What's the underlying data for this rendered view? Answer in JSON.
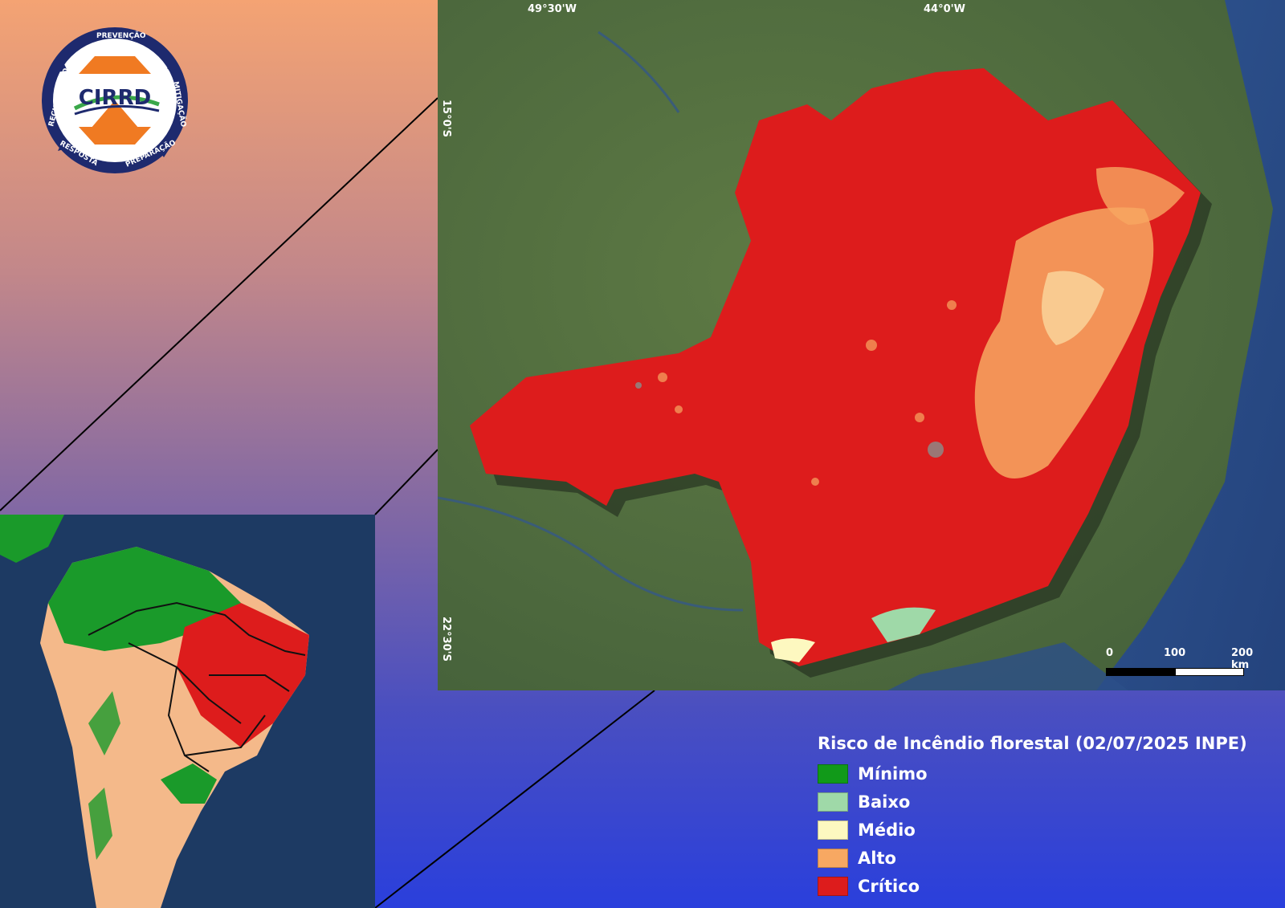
{
  "logo": {
    "name": "CIRRD",
    "ring_words": [
      "PREVENÇÃO",
      "MITIGAÇÃO",
      "PREPARAÇÃO",
      "RESPOSTA",
      "RECUPERAÇÃO"
    ],
    "colors": {
      "ring": "#1e2a6e",
      "mark": "#f07a22",
      "swoosh_green": "#3aa84a"
    }
  },
  "main_map": {
    "coordinate_labels": {
      "top_left": "49°30'W",
      "top_right": "44°0'W",
      "left_upper": "15°0'S",
      "left_lower": "22°30'S"
    }
  },
  "scale_bar": {
    "labels": [
      "0",
      "100",
      "200 km"
    ]
  },
  "legend": {
    "title": "Risco de Incêndio florestal (02/07/2025 INPE)",
    "items": [
      {
        "label": "Mínimo",
        "color": "#119a19"
      },
      {
        "label": "Baixo",
        "color": "#9fd9a8"
      },
      {
        "label": "Médio",
        "color": "#fdf8c0"
      },
      {
        "label": "Alto",
        "color": "#f7a862"
      },
      {
        "label": "Crítico",
        "color": "#dd1c1c"
      }
    ]
  }
}
